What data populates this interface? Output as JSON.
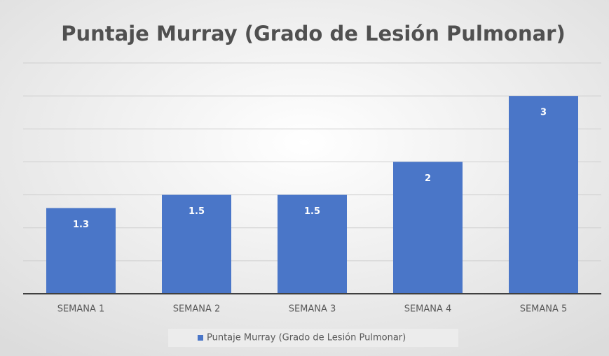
{
  "chart_data": {
    "type": "bar",
    "title": "Puntaje Murray (Grado de Lesión Pulmonar)",
    "categories": [
      "SEMANA 1",
      "SEMANA 2",
      "SEMANA 3",
      "SEMANA 4",
      "SEMANA 5"
    ],
    "series": [
      {
        "name": "Puntaje Murray (Grado de Lesión Pulmonar)",
        "color": "#4a76c8",
        "values": [
          1.3,
          1.5,
          1.5,
          2,
          3
        ]
      }
    ],
    "ylim": [
      0,
      3.5
    ],
    "yticks": [
      0,
      0.5,
      1,
      1.5,
      2,
      2.5,
      3,
      3.5
    ],
    "grid": true,
    "legend": "bottom"
  }
}
